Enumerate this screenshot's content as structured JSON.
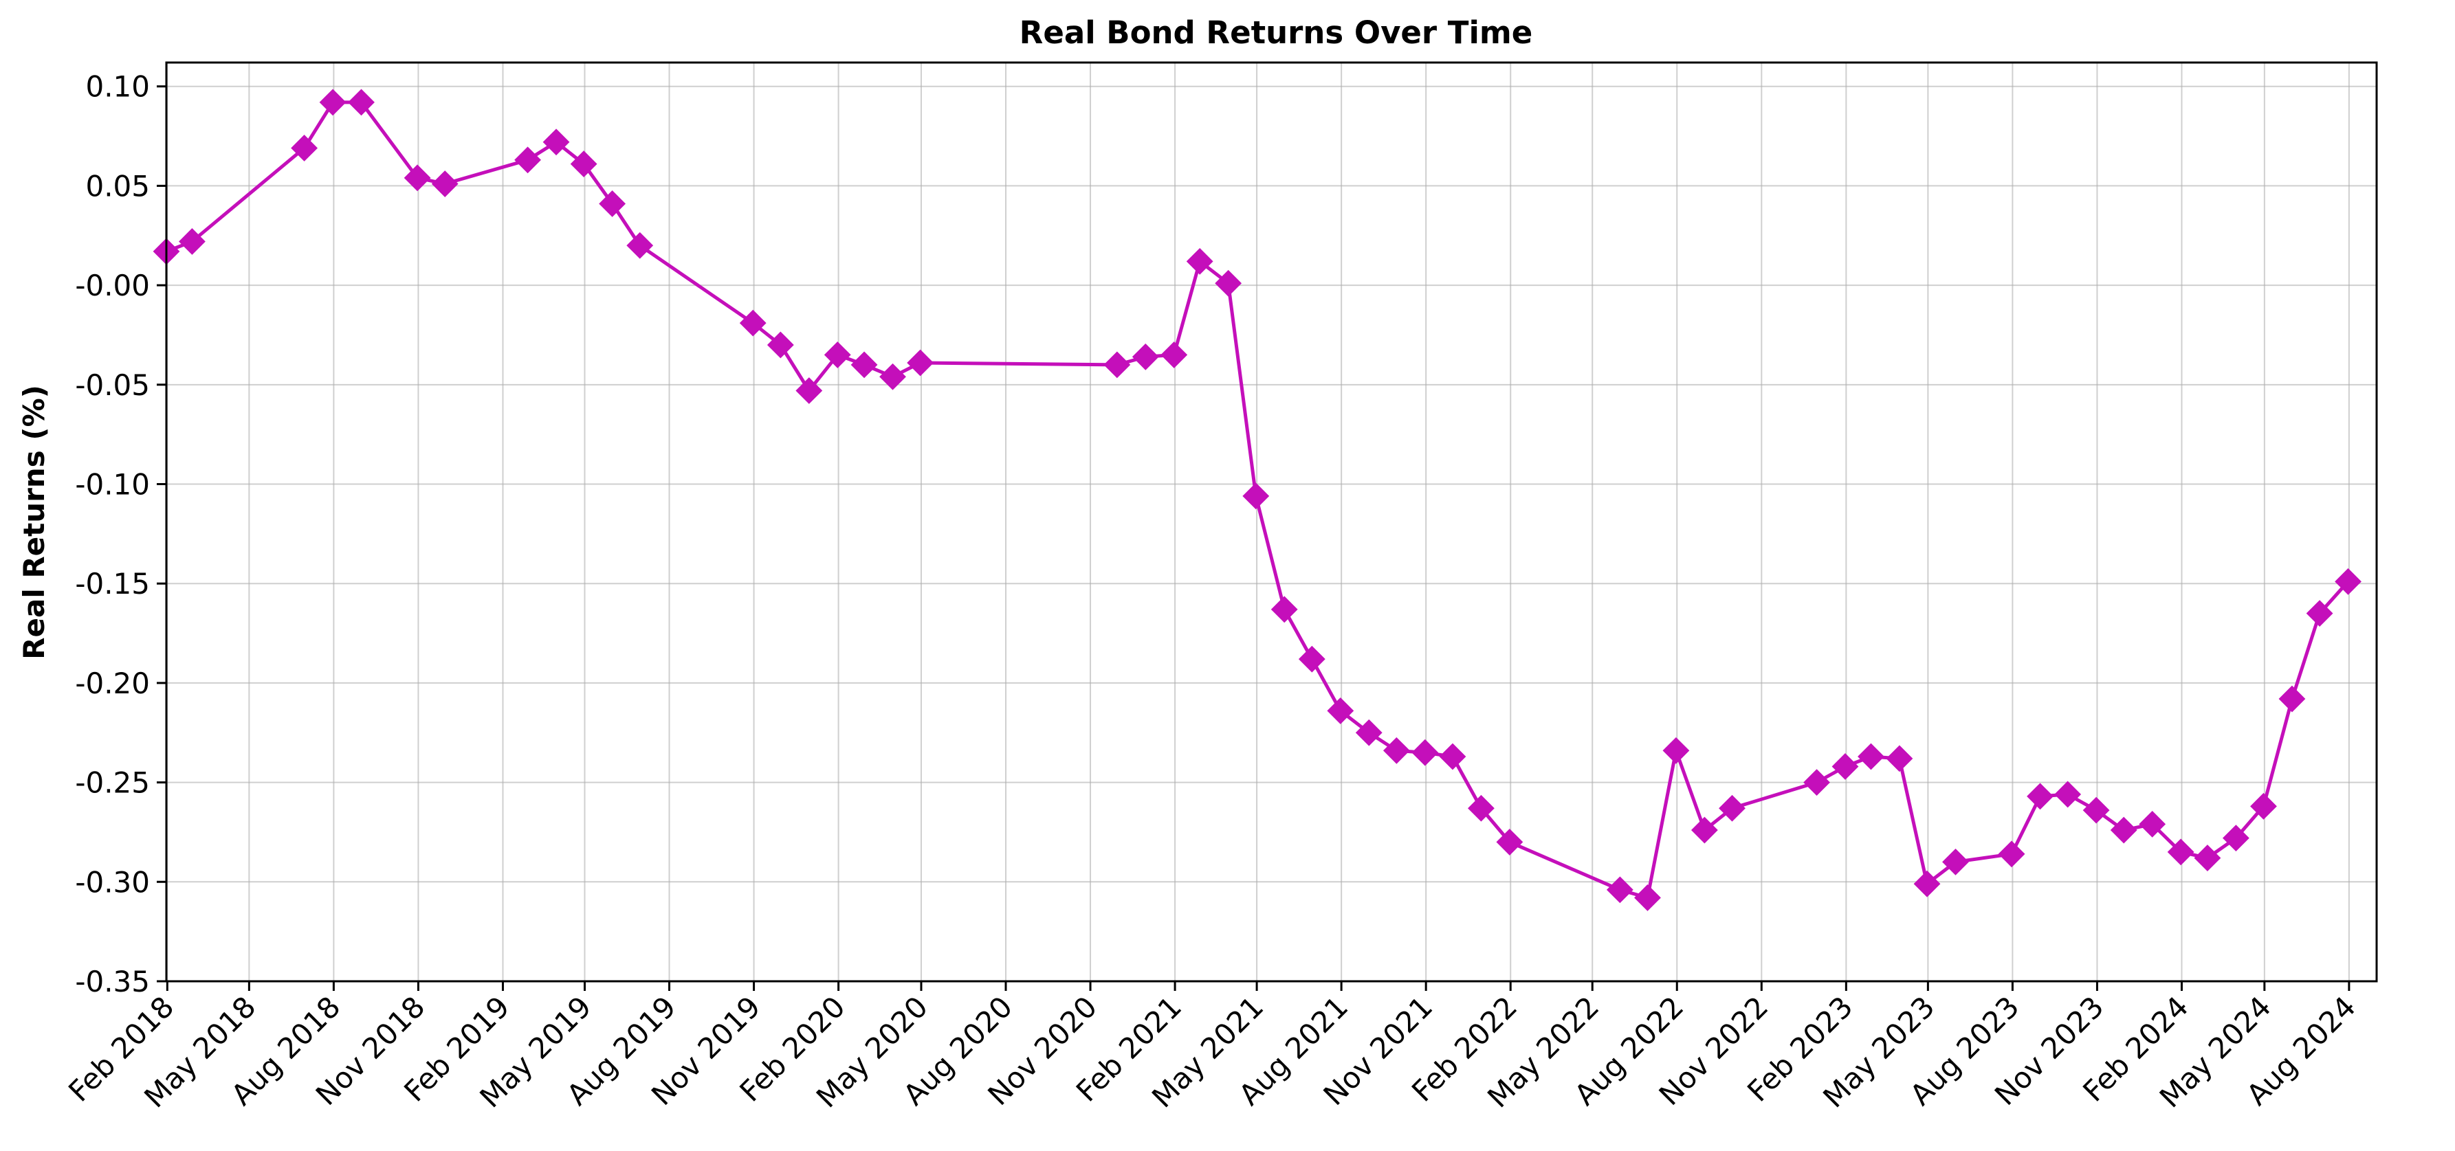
{
  "chart_data": {
    "type": "line",
    "title": "Real Bond Returns Over Time",
    "xlabel": "",
    "ylabel": "Real Returns (%)",
    "ylim": [
      -0.35,
      0.112
    ],
    "xlim": [
      "2018-01-31",
      "2024-08-31"
    ],
    "grid": true,
    "color": "#c40fba",
    "marker": "diamond",
    "x_ticks": [
      {
        "date": "2018-02-01",
        "label": "Feb 2018"
      },
      {
        "date": "2018-05-01",
        "label": "May 2018"
      },
      {
        "date": "2018-08-01",
        "label": "Aug 2018"
      },
      {
        "date": "2018-11-01",
        "label": "Nov 2018"
      },
      {
        "date": "2019-02-01",
        "label": "Feb 2019"
      },
      {
        "date": "2019-05-01",
        "label": "May 2019"
      },
      {
        "date": "2019-08-01",
        "label": "Aug 2019"
      },
      {
        "date": "2019-11-01",
        "label": "Nov 2019"
      },
      {
        "date": "2020-02-01",
        "label": "Feb 2020"
      },
      {
        "date": "2020-05-01",
        "label": "May 2020"
      },
      {
        "date": "2020-08-01",
        "label": "Aug 2020"
      },
      {
        "date": "2020-11-01",
        "label": "Nov 2020"
      },
      {
        "date": "2021-02-01",
        "label": "Feb 2021"
      },
      {
        "date": "2021-05-01",
        "label": "May 2021"
      },
      {
        "date": "2021-08-01",
        "label": "Aug 2021"
      },
      {
        "date": "2021-11-01",
        "label": "Nov 2021"
      },
      {
        "date": "2022-02-01",
        "label": "Feb 2022"
      },
      {
        "date": "2022-05-01",
        "label": "May 2022"
      },
      {
        "date": "2022-08-01",
        "label": "Aug 2022"
      },
      {
        "date": "2022-11-01",
        "label": "Nov 2022"
      },
      {
        "date": "2023-02-01",
        "label": "Feb 2023"
      },
      {
        "date": "2023-05-01",
        "label": "May 2023"
      },
      {
        "date": "2023-08-01",
        "label": "Aug 2023"
      },
      {
        "date": "2023-11-01",
        "label": "Nov 2023"
      },
      {
        "date": "2024-02-01",
        "label": "Feb 2024"
      },
      {
        "date": "2024-05-01",
        "label": "May 2024"
      },
      {
        "date": "2024-08-01",
        "label": "Aug 2024"
      }
    ],
    "y_ticks": [
      {
        "value": 0.1,
        "label": "0.10"
      },
      {
        "value": 0.05,
        "label": "0.05"
      },
      {
        "value": 0.0,
        "label": "-0.00"
      },
      {
        "value": -0.05,
        "label": "-0.05"
      },
      {
        "value": -0.1,
        "label": "-0.10"
      },
      {
        "value": -0.15,
        "label": "-0.15"
      },
      {
        "value": -0.2,
        "label": "-0.20"
      },
      {
        "value": -0.25,
        "label": "-0.25"
      },
      {
        "value": -0.3,
        "label": "-0.30"
      },
      {
        "value": -0.35,
        "label": "-0.35"
      }
    ],
    "points": [
      {
        "x": "2018-01-31",
        "y": 0.017
      },
      {
        "x": "2018-02-28",
        "y": 0.022
      },
      {
        "x": "2018-06-30",
        "y": 0.069
      },
      {
        "x": "2018-07-31",
        "y": 0.092
      },
      {
        "x": "2018-08-31",
        "y": 0.092
      },
      {
        "x": "2018-10-31",
        "y": 0.054
      },
      {
        "x": "2018-11-30",
        "y": 0.051
      },
      {
        "x": "2019-02-28",
        "y": 0.063
      },
      {
        "x": "2019-03-31",
        "y": 0.072
      },
      {
        "x": "2019-04-30",
        "y": 0.061
      },
      {
        "x": "2019-05-31",
        "y": 0.041
      },
      {
        "x": "2019-06-30",
        "y": 0.02
      },
      {
        "x": "2019-10-31",
        "y": -0.019
      },
      {
        "x": "2019-11-30",
        "y": -0.03
      },
      {
        "x": "2019-12-31",
        "y": -0.053
      },
      {
        "x": "2020-01-31",
        "y": -0.035
      },
      {
        "x": "2020-02-29",
        "y": -0.04
      },
      {
        "x": "2020-03-31",
        "y": -0.046
      },
      {
        "x": "2020-04-30",
        "y": -0.039
      },
      {
        "x": "2020-11-30",
        "y": -0.04
      },
      {
        "x": "2020-12-31",
        "y": -0.036
      },
      {
        "x": "2021-01-31",
        "y": -0.035
      },
      {
        "x": "2021-02-28",
        "y": 0.012
      },
      {
        "x": "2021-03-31",
        "y": 0.001
      },
      {
        "x": "2021-04-30",
        "y": -0.106
      },
      {
        "x": "2021-05-31",
        "y": -0.163
      },
      {
        "x": "2021-06-30",
        "y": -0.188
      },
      {
        "x": "2021-07-31",
        "y": -0.214
      },
      {
        "x": "2021-08-31",
        "y": -0.225
      },
      {
        "x": "2021-09-30",
        "y": -0.234
      },
      {
        "x": "2021-10-31",
        "y": -0.235
      },
      {
        "x": "2021-11-30",
        "y": -0.237
      },
      {
        "x": "2021-12-31",
        "y": -0.263
      },
      {
        "x": "2022-01-31",
        "y": -0.28
      },
      {
        "x": "2022-05-31",
        "y": -0.304
      },
      {
        "x": "2022-06-30",
        "y": -0.308
      },
      {
        "x": "2022-07-31",
        "y": -0.234
      },
      {
        "x": "2022-08-31",
        "y": -0.274
      },
      {
        "x": "2022-09-30",
        "y": -0.263
      },
      {
        "x": "2022-12-31",
        "y": -0.25
      },
      {
        "x": "2023-01-31",
        "y": -0.242
      },
      {
        "x": "2023-02-28",
        "y": -0.237
      },
      {
        "x": "2023-03-31",
        "y": -0.238
      },
      {
        "x": "2023-04-30",
        "y": -0.301
      },
      {
        "x": "2023-05-31",
        "y": -0.29
      },
      {
        "x": "2023-07-31",
        "y": -0.286
      },
      {
        "x": "2023-08-31",
        "y": -0.257
      },
      {
        "x": "2023-09-30",
        "y": -0.256
      },
      {
        "x": "2023-10-31",
        "y": -0.264
      },
      {
        "x": "2023-11-30",
        "y": -0.274
      },
      {
        "x": "2023-12-31",
        "y": -0.271
      },
      {
        "x": "2024-01-31",
        "y": -0.285
      },
      {
        "x": "2024-02-29",
        "y": -0.288
      },
      {
        "x": "2024-03-31",
        "y": -0.278
      },
      {
        "x": "2024-04-30",
        "y": -0.262
      },
      {
        "x": "2024-05-31",
        "y": -0.208
      },
      {
        "x": "2024-06-30",
        "y": -0.165
      },
      {
        "x": "2024-07-31",
        "y": -0.149
      }
    ]
  }
}
